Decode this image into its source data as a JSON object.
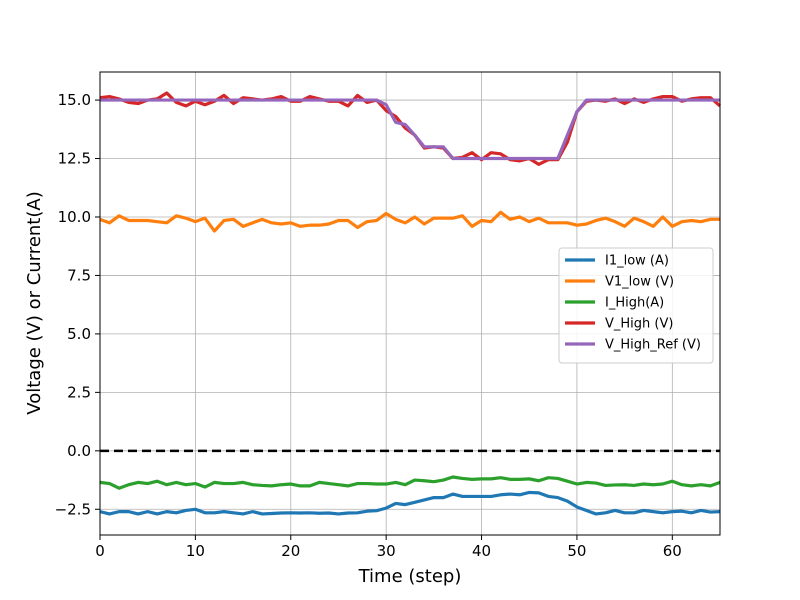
{
  "chart_data": {
    "type": "line",
    "title": "",
    "xlabel": "Time (step)",
    "ylabel": "Voltage (V) or Current(A)",
    "xlim": [
      0,
      65
    ],
    "ylim": [
      -3.6,
      16.2
    ],
    "xticks": [
      0,
      10,
      20,
      30,
      40,
      50,
      60
    ],
    "xtick_labels": [
      "0",
      "10",
      "20",
      "30",
      "40",
      "50",
      "60"
    ],
    "yticks": [
      -2.5,
      0.0,
      2.5,
      5.0,
      7.5,
      10.0,
      12.5,
      15.0
    ],
    "ytick_labels": [
      "−2.5",
      "0.0",
      "2.5",
      "5.0",
      "7.5",
      "10.0",
      "12.5",
      "15.0"
    ],
    "grid": true,
    "legend_position": "center-right",
    "reference_line": {
      "y": 0,
      "style": "dashed",
      "color": "#000000"
    },
    "x": [
      0,
      1,
      2,
      3,
      4,
      5,
      6,
      7,
      8,
      9,
      10,
      11,
      12,
      13,
      14,
      15,
      16,
      17,
      18,
      19,
      20,
      21,
      22,
      23,
      24,
      25,
      26,
      27,
      28,
      29,
      30,
      31,
      32,
      33,
      34,
      35,
      36,
      37,
      38,
      39,
      40,
      41,
      42,
      43,
      44,
      45,
      46,
      47,
      48,
      49,
      50,
      51,
      52,
      53,
      54,
      55,
      56,
      57,
      58,
      59,
      60,
      61,
      62,
      63,
      64,
      65
    ],
    "series": [
      {
        "name": "I1_low (A)",
        "color": "#1f77b4",
        "values": [
          -2.6,
          -2.7,
          -2.6,
          -2.6,
          -2.7,
          -2.6,
          -2.7,
          -2.6,
          -2.65,
          -2.55,
          -2.5,
          -2.65,
          -2.65,
          -2.6,
          -2.65,
          -2.7,
          -2.6,
          -2.7,
          -2.68,
          -2.66,
          -2.65,
          -2.66,
          -2.65,
          -2.67,
          -2.66,
          -2.7,
          -2.66,
          -2.65,
          -2.58,
          -2.56,
          -2.45,
          -2.25,
          -2.3,
          -2.2,
          -2.1,
          -2.0,
          -2.0,
          -1.85,
          -1.95,
          -1.95,
          -1.95,
          -1.95,
          -1.88,
          -1.85,
          -1.88,
          -1.78,
          -1.8,
          -1.95,
          -2.0,
          -2.15,
          -2.4,
          -2.55,
          -2.7,
          -2.65,
          -2.55,
          -2.65,
          -2.65,
          -2.55,
          -2.6,
          -2.65,
          -2.6,
          -2.58,
          -2.65,
          -2.55,
          -2.62,
          -2.6
        ]
      },
      {
        "name": "V1_low (V)",
        "color": "#ff7f0e",
        "values": [
          9.9,
          9.75,
          10.05,
          9.85,
          9.85,
          9.85,
          9.8,
          9.75,
          10.05,
          9.95,
          9.8,
          9.95,
          9.4,
          9.85,
          9.9,
          9.6,
          9.75,
          9.9,
          9.75,
          9.7,
          9.75,
          9.6,
          9.65,
          9.65,
          9.7,
          9.85,
          9.85,
          9.55,
          9.8,
          9.85,
          10.15,
          9.9,
          9.75,
          10.0,
          9.7,
          9.95,
          9.95,
          9.95,
          10.05,
          9.6,
          9.85,
          9.8,
          10.2,
          9.9,
          10.0,
          9.8,
          9.95,
          9.75,
          9.75,
          9.75,
          9.65,
          9.7,
          9.85,
          9.95,
          9.8,
          9.6,
          9.95,
          9.8,
          9.6,
          10.0,
          9.6,
          9.8,
          9.85,
          9.8,
          9.9,
          9.9
        ]
      },
      {
        "name": "I_High(A)",
        "color": "#2ca02c",
        "values": [
          -1.35,
          -1.4,
          -1.6,
          -1.45,
          -1.35,
          -1.4,
          -1.3,
          -1.45,
          -1.35,
          -1.45,
          -1.4,
          -1.55,
          -1.35,
          -1.4,
          -1.4,
          -1.35,
          -1.45,
          -1.48,
          -1.5,
          -1.45,
          -1.42,
          -1.5,
          -1.5,
          -1.35,
          -1.4,
          -1.45,
          -1.5,
          -1.4,
          -1.4,
          -1.42,
          -1.42,
          -1.35,
          -1.45,
          -1.25,
          -1.28,
          -1.32,
          -1.25,
          -1.12,
          -1.18,
          -1.22,
          -1.2,
          -1.2,
          -1.15,
          -1.22,
          -1.22,
          -1.2,
          -1.28,
          -1.15,
          -1.18,
          -1.3,
          -1.42,
          -1.35,
          -1.38,
          -1.48,
          -1.46,
          -1.45,
          -1.48,
          -1.42,
          -1.45,
          -1.42,
          -1.3,
          -1.45,
          -1.5,
          -1.45,
          -1.5,
          -1.35
        ]
      },
      {
        "name": "V_High (V)",
        "color": "#d62728",
        "values": [
          15.1,
          15.15,
          15.05,
          14.9,
          14.85,
          15.0,
          15.05,
          15.3,
          14.9,
          14.75,
          14.95,
          14.8,
          14.95,
          15.2,
          14.85,
          15.1,
          15.05,
          15.0,
          15.05,
          15.15,
          14.95,
          14.95,
          15.15,
          15.05,
          14.95,
          14.95,
          14.75,
          15.2,
          14.9,
          15.0,
          14.55,
          14.3,
          13.8,
          13.5,
          12.95,
          13.0,
          12.95,
          12.5,
          12.55,
          12.75,
          12.45,
          12.75,
          12.7,
          12.45,
          12.4,
          12.5,
          12.25,
          12.45,
          12.45,
          13.2,
          14.5,
          14.95,
          15.0,
          14.95,
          15.05,
          14.85,
          15.05,
          14.9,
          15.05,
          15.15,
          15.15,
          14.95,
          15.05,
          15.1,
          15.1,
          14.75
        ]
      },
      {
        "name": "V_High_Ref (V)",
        "color": "#9467bd",
        "values": [
          15.0,
          15.0,
          15.0,
          15.0,
          15.0,
          15.0,
          15.0,
          15.0,
          15.0,
          15.0,
          15.0,
          15.0,
          15.0,
          15.0,
          15.0,
          15.0,
          15.0,
          15.0,
          15.0,
          15.0,
          15.0,
          15.0,
          15.0,
          15.0,
          15.0,
          15.0,
          15.0,
          15.0,
          15.0,
          15.0,
          14.8,
          14.05,
          13.95,
          13.5,
          13.0,
          13.0,
          13.0,
          12.5,
          12.5,
          12.5,
          12.5,
          12.5,
          12.5,
          12.5,
          12.5,
          12.5,
          12.5,
          12.5,
          12.5,
          13.5,
          14.5,
          15.0,
          15.0,
          15.0,
          15.0,
          15.0,
          15.0,
          15.0,
          15.0,
          15.0,
          15.0,
          15.0,
          15.0,
          15.0,
          15.0,
          15.0
        ]
      }
    ]
  }
}
